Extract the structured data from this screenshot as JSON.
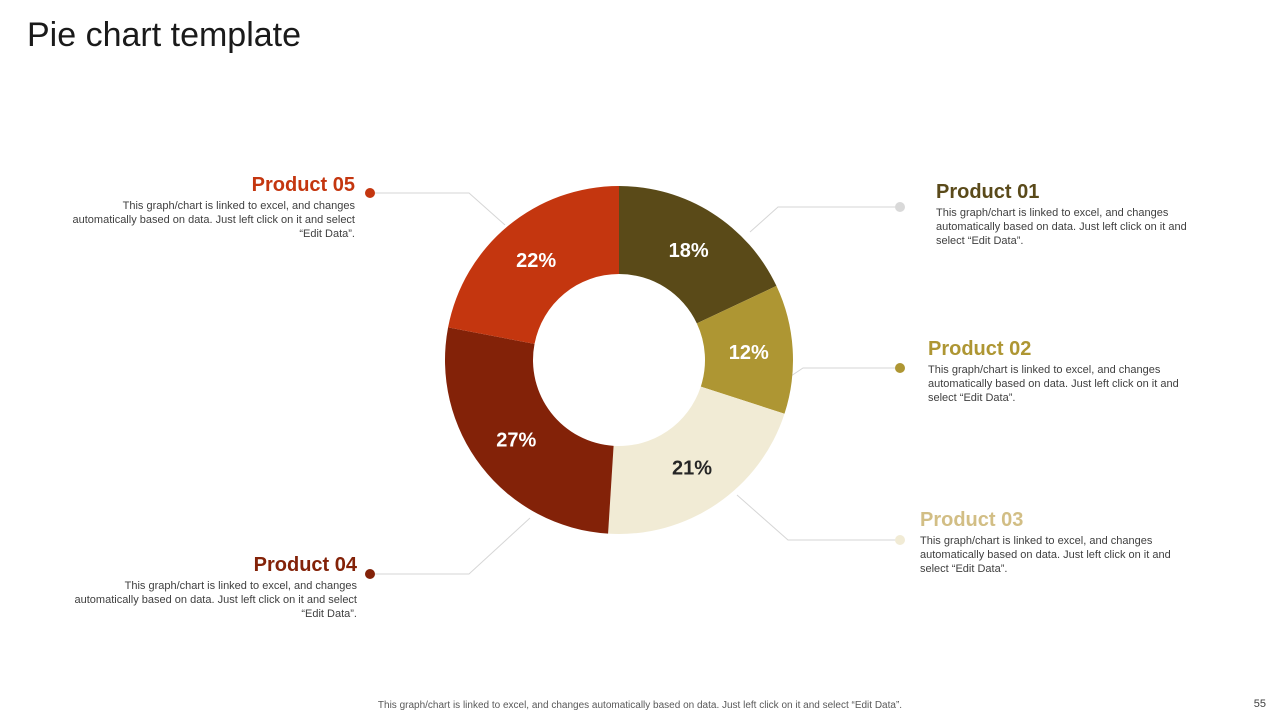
{
  "slide": {
    "title": "Pie chart template",
    "footer_note": "This graph/chart is linked to excel, and changes automatically based on data. Just left click on it and select “Edit Data”.",
    "page_number": "55"
  },
  "products": [
    {
      "heading": "Product 01",
      "desc": "This graph/chart is linked to excel, and changes automatically based on data. Just left click on it and select “Edit Data”.",
      "color": "#5A4A1A"
    },
    {
      "heading": "Product 02",
      "desc": "This graph/chart is linked to excel, and changes automatically based on data. Just left click on it and select “Edit Data”.",
      "color": "#AE9633"
    },
    {
      "heading": "Product 03",
      "desc": "This graph/chart is linked to excel, and changes automatically based on data. Just left click on it and select “Edit Data”.",
      "color": "#D2BE85"
    },
    {
      "heading": "Product 04",
      "desc": "This graph/chart is linked to excel, and changes automatically based on data. Just left click on it and select “Edit Data”.",
      "color": "#832208"
    },
    {
      "heading": "Product 05",
      "desc": "This graph/chart is linked to excel, and changes automatically based on data. Just left click on it and select “Edit Data”.",
      "color": "#C4360F"
    }
  ],
  "chart_data": {
    "type": "pie",
    "variant": "donut",
    "title": "",
    "categories": [
      "Product 01",
      "Product 02",
      "Product 03",
      "Product 04",
      "Product 05"
    ],
    "values": [
      18,
      12,
      21,
      27,
      22
    ],
    "labels": [
      "18%",
      "12%",
      "21%",
      "27%",
      "22%"
    ],
    "colors": [
      "#5A4A18",
      "#AE9633",
      "#F1EBD5",
      "#832208",
      "#C4360F"
    ],
    "label_colors": [
      "#ffffff",
      "#ffffff",
      "#262626",
      "#ffffff",
      "#ffffff"
    ]
  }
}
